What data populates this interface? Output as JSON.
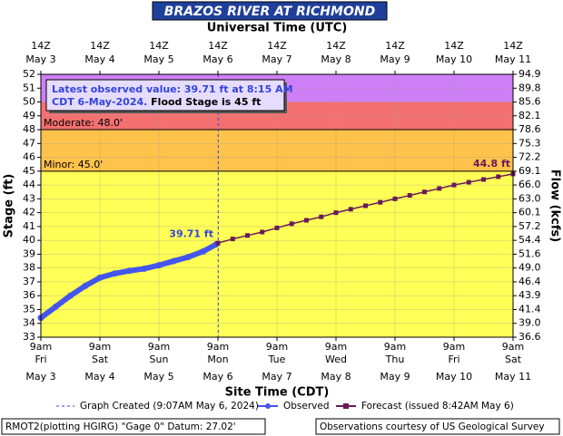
{
  "chart_data": {
    "type": "hydrograph",
    "title": "BRAZOS RIVER AT RICHMOND",
    "top_axis_title": "Universal Time (UTC)",
    "x_axis_title": "Site Time (CDT)",
    "y_axis_title": "Stage (ft)",
    "y2_axis_title": "Flow (kcfs)",
    "xlim": [
      "2024-05-03T09:00",
      "2024-05-11T09:00"
    ],
    "xticks": [
      "2024-05-03T09:00",
      "2024-05-04T09:00",
      "2024-05-05T09:00",
      "2024-05-06T09:00",
      "2024-05-07T09:00",
      "2024-05-08T09:00",
      "2024-05-09T09:00",
      "2024-05-10T09:00",
      "2024-05-11T09:00"
    ],
    "xtick_labels": [
      {
        "time": "9am",
        "weekday": "Fri",
        "date": "May 3"
      },
      {
        "time": "9am",
        "weekday": "Sat",
        "date": "May 4"
      },
      {
        "time": "9am",
        "weekday": "Sun",
        "date": "May 5"
      },
      {
        "time": "9am",
        "weekday": "Mon",
        "date": "May 6"
      },
      {
        "time": "9am",
        "weekday": "Tue",
        "date": "May 7"
      },
      {
        "time": "9am",
        "weekday": "Wed",
        "date": "May 8"
      },
      {
        "time": "9am",
        "weekday": "Thu",
        "date": "May 9"
      },
      {
        "time": "9am",
        "weekday": "Fri",
        "date": "May 10"
      },
      {
        "time": "9am",
        "weekday": "Sat",
        "date": "May 11"
      }
    ],
    "top_xtick_labels": [
      {
        "time": "14Z",
        "date": "May 3"
      },
      {
        "time": "14Z",
        "date": "May 4"
      },
      {
        "time": "14Z",
        "date": "May 5"
      },
      {
        "time": "14Z",
        "date": "May 6"
      },
      {
        "time": "14Z",
        "date": "May 7"
      },
      {
        "time": "14Z",
        "date": "May 8"
      },
      {
        "time": "14Z",
        "date": "May 9"
      },
      {
        "time": "14Z",
        "date": "May 10"
      },
      {
        "time": "14Z",
        "date": "May 11"
      }
    ],
    "ylim": [
      33,
      52
    ],
    "yticks": [
      33,
      34,
      35,
      36,
      37,
      38,
      39,
      40,
      41,
      42,
      43,
      44,
      45,
      46,
      47,
      48,
      49,
      50,
      51,
      52
    ],
    "y2ticks": [
      {
        "value": 36.6,
        "label": "36.6"
      },
      {
        "value": 39.0,
        "label": "39.0"
      },
      {
        "value": 41.4,
        "label": "41.4"
      },
      {
        "value": 43.9,
        "label": "43.9"
      },
      {
        "value": 46.4,
        "label": "46.4"
      },
      {
        "value": 49.0,
        "label": "49.0"
      },
      {
        "value": 51.6,
        "label": "51.6"
      },
      {
        "value": 54.4,
        "label": "54.4"
      },
      {
        "value": 57.2,
        "label": "57.2"
      },
      {
        "value": 60.1,
        "label": "60.1"
      },
      {
        "value": 63.0,
        "label": "63.0"
      },
      {
        "value": 66.0,
        "label": "66.0"
      },
      {
        "value": 69.1,
        "label": "69.1"
      },
      {
        "value": 72.2,
        "label": "72.2"
      },
      {
        "value": 75.3,
        "label": "75.3"
      },
      {
        "value": 78.6,
        "label": "78.6"
      },
      {
        "value": 82.1,
        "label": "82.1"
      },
      {
        "value": 85.6,
        "label": "85.6"
      },
      {
        "value": 89.8,
        "label": "89.8"
      },
      {
        "value": 94.9,
        "label": "94.9"
      }
    ],
    "grid": true,
    "bands": [
      {
        "from": 33,
        "to": 45,
        "color": "#ffff55"
      },
      {
        "from": 45,
        "to": 48,
        "color": "#ffc24a"
      },
      {
        "from": 48,
        "to": 50,
        "color": "#f47070"
      },
      {
        "from": 50,
        "to": 52,
        "color": "#cf7ff5"
      }
    ],
    "thresholds": [
      {
        "label": "Moderate: 48.0'",
        "value": 48
      },
      {
        "label": "Minor: 45.0'",
        "value": 45
      }
    ],
    "series": [
      {
        "name": "Observed",
        "color": "#4455ee",
        "marker": "circle",
        "x": [
          "2024-05-03T09:00",
          "2024-05-03T15:00",
          "2024-05-03T21:00",
          "2024-05-04T03:00",
          "2024-05-04T09:00",
          "2024-05-04T15:00",
          "2024-05-04T21:00",
          "2024-05-05T03:00",
          "2024-05-05T09:00",
          "2024-05-05T15:00",
          "2024-05-05T21:00",
          "2024-05-06T03:00",
          "2024-05-06T08:15"
        ],
        "values": [
          34.4,
          35.2,
          36.0,
          36.7,
          37.3,
          37.6,
          37.8,
          37.95,
          38.2,
          38.5,
          38.8,
          39.2,
          39.71
        ]
      },
      {
        "name": "Forecast (issued 8:42AM May 6)",
        "color": "#6a1a5a",
        "marker": "square",
        "x": [
          "2024-05-06T09:00",
          "2024-05-06T15:00",
          "2024-05-06T21:00",
          "2024-05-07T03:00",
          "2024-05-07T09:00",
          "2024-05-07T15:00",
          "2024-05-07T21:00",
          "2024-05-08T03:00",
          "2024-05-08T09:00",
          "2024-05-08T15:00",
          "2024-05-08T21:00",
          "2024-05-09T03:00",
          "2024-05-09T09:00",
          "2024-05-09T15:00",
          "2024-05-09T21:00",
          "2024-05-10T03:00",
          "2024-05-10T09:00",
          "2024-05-10T15:00",
          "2024-05-10T21:00",
          "2024-05-11T03:00",
          "2024-05-11T09:00"
        ],
        "values": [
          39.8,
          40.1,
          40.35,
          40.6,
          40.9,
          41.2,
          41.45,
          41.7,
          42.0,
          42.25,
          42.5,
          42.75,
          43.0,
          43.25,
          43.5,
          43.75,
          44.0,
          44.2,
          44.4,
          44.6,
          44.8
        ]
      }
    ],
    "annotations": [
      {
        "text": "39.71 ft",
        "value": 39.71,
        "x": "2024-05-06T08:15",
        "color": "#3344dd"
      },
      {
        "text": "44.8 ft",
        "value": 44.8,
        "x": "2024-05-11T09:00",
        "color": "#6a1a5a"
      }
    ],
    "graph_created": {
      "label": "Graph Created (9:07AM May 6, 2024)",
      "x": "2024-05-06T09:07",
      "color": "#3344dd"
    },
    "info_box": {
      "line1": "Latest observed value: 39.71 ft at 8:15 AM",
      "line2": "CDT 6-May-2024.",
      "line2_flood": " Flood Stage is 45 ft"
    },
    "footer_left": "RMOT2(plotting HGIRG) \"Gage 0\" Datum: 27.02'",
    "footer_right": "Observations courtesy of US Geological Survey"
  }
}
